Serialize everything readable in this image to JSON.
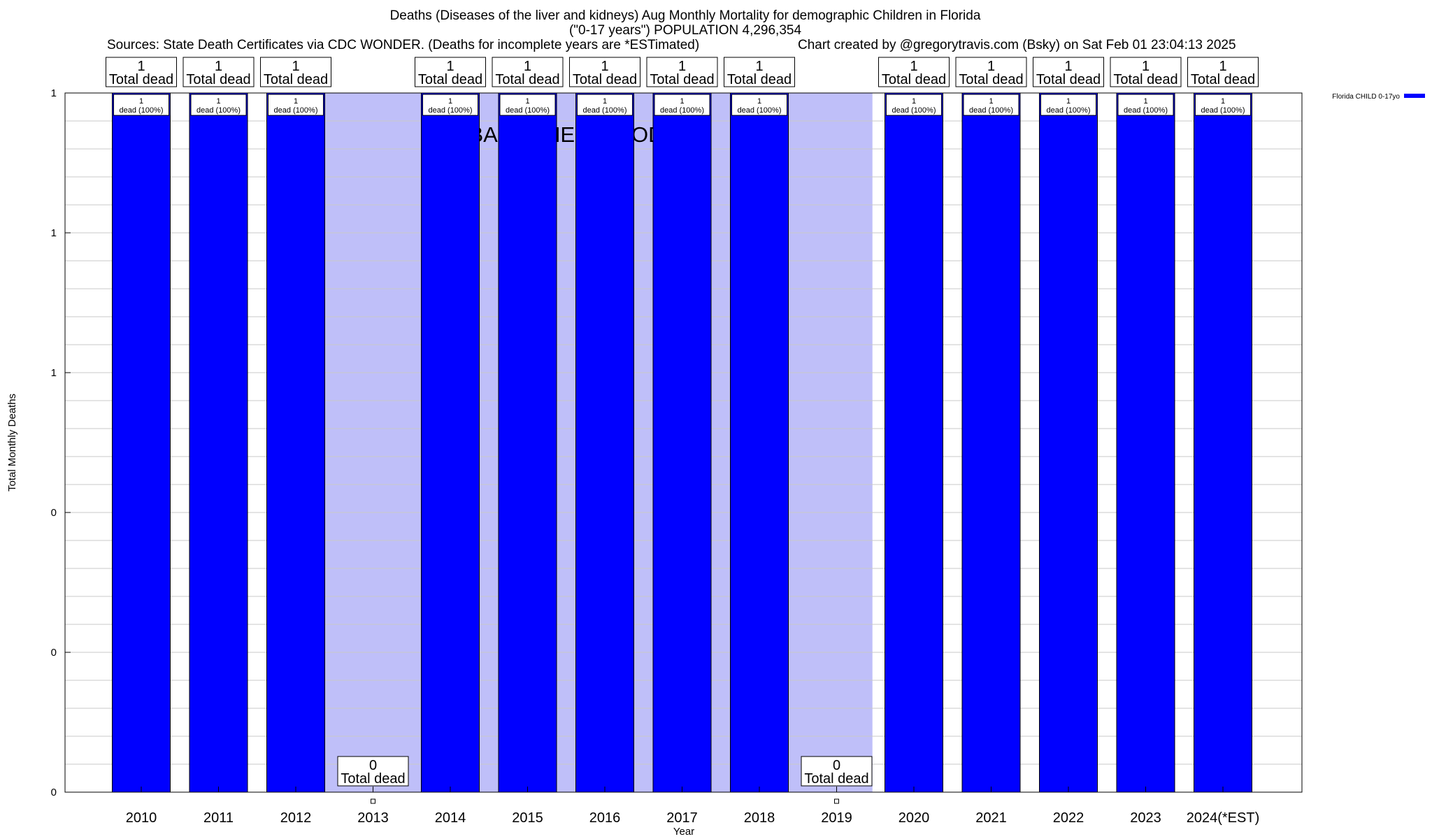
{
  "header": {
    "title_line1": "Deaths (Diseases of the liver and kidneys) Aug Monthly Mortality for demographic Children in Florida",
    "title_line2": "(\"0-17 years\") POPULATION 4,296,354",
    "sources": "Sources: State Death Certificates via CDC WONDER. (Deaths for incomplete years are *ESTimated)",
    "credit": "Chart created by @gregorytravis.com (Bsky) on Sat Feb 01 23:04:13 2025"
  },
  "chart_data": {
    "type": "bar",
    "title": "Deaths (Diseases of the liver and kidneys) Aug Monthly Mortality for demographic Children in Florida",
    "xlabel": "Year",
    "ylabel": "Total Monthly Deaths",
    "ylim": [
      0,
      1
    ],
    "y_tick_labels": [
      "0",
      "0",
      "0",
      "1",
      "1",
      "1"
    ],
    "categories": [
      "2010",
      "2011",
      "2012",
      "2013",
      "2014",
      "2015",
      "2016",
      "2017",
      "2018",
      "2019",
      "2020",
      "2021",
      "2022",
      "2023",
      "2024(*EST)"
    ],
    "series": [
      {
        "name": "Florida CHILD 0-17yo",
        "values": [
          1,
          1,
          1,
          0,
          1,
          1,
          1,
          1,
          1,
          0,
          1,
          1,
          1,
          1,
          1
        ],
        "color": "#0000ff"
      }
    ],
    "total_labels": [
      "1\nTotal dead",
      "1\nTotal dead",
      "1\nTotal dead",
      "0\nTotal dead",
      "1\nTotal dead",
      "1\nTotal dead",
      "1\nTotal dead",
      "1\nTotal dead",
      "1\nTotal dead",
      "0\nTotal dead",
      "1\nTotal dead",
      "1\nTotal dead",
      "1\nTotal dead",
      "1\nTotal dead",
      "1\nTotal dead"
    ],
    "bar_labels": [
      "1\ndead (100%)",
      "1\ndead (100%)",
      "1\ndead (100%)",
      "",
      "1\ndead (100%)",
      "1\ndead (100%)",
      "1\ndead (100%)",
      "1\ndead (100%)",
      "1\ndead (100%)",
      "",
      "1\ndead (100%)",
      "1\ndead (100%)",
      "1\ndead (100%)",
      "1\ndead (100%)",
      "1\ndead (100%)"
    ],
    "baseline_period": {
      "label": "BASELINE PERIOD",
      "from": "2012",
      "to": "2019",
      "color": "#bfbff9"
    },
    "grid": true,
    "legend": {
      "position": "top-right",
      "entries": [
        "Florida CHILD 0-17yo"
      ]
    }
  }
}
